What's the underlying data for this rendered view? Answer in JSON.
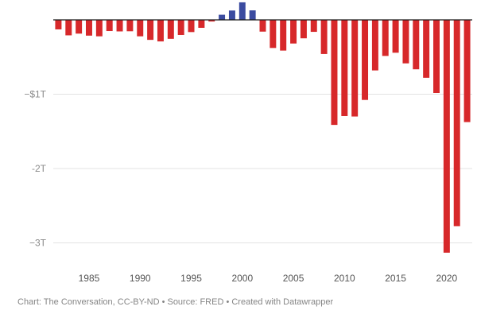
{
  "chart_data": {
    "type": "bar",
    "title": "",
    "xlabel": "",
    "ylabel": "",
    "unit": "Trillions USD",
    "x_tick_labels": [
      "1985",
      "1990",
      "1995",
      "2000",
      "2005",
      "2010",
      "2015",
      "2020"
    ],
    "y_ticks": [
      {
        "value": -1,
        "label": "−$1T"
      },
      {
        "value": -2,
        "label": "-2T"
      },
      {
        "value": -3,
        "label": "−3T"
      }
    ],
    "ylim": [
      -3.3,
      0.0
    ],
    "xlim": [
      1981.5,
      2022.5
    ],
    "categories": [
      1982,
      1983,
      1984,
      1985,
      1986,
      1987,
      1988,
      1989,
      1990,
      1991,
      1992,
      1993,
      1994,
      1995,
      1996,
      1997,
      1998,
      1999,
      2000,
      2001,
      2002,
      2003,
      2004,
      2005,
      2006,
      2007,
      2008,
      2009,
      2010,
      2011,
      2012,
      2013,
      2014,
      2015,
      2016,
      2017,
      2018,
      2019,
      2020,
      2021,
      2022
    ],
    "values": [
      -0.128,
      -0.208,
      -0.185,
      -0.212,
      -0.221,
      -0.15,
      -0.155,
      -0.153,
      -0.221,
      -0.269,
      -0.29,
      -0.255,
      -0.203,
      -0.164,
      -0.107,
      -0.022,
      0.069,
      0.126,
      0.236,
      0.128,
      -0.158,
      -0.378,
      -0.413,
      -0.318,
      -0.248,
      -0.161,
      -0.459,
      -1.413,
      -1.294,
      -1.3,
      -1.077,
      -0.68,
      -0.485,
      -0.442,
      -0.585,
      -0.665,
      -0.779,
      -0.984,
      -3.132,
      -2.775,
      -1.375
    ],
    "colors": {
      "surplus": "#3b4ba0",
      "deficit": "#d7282a"
    }
  },
  "footer": {
    "credit": "Chart: The Conversation, CC-BY-ND • Source: FRED • Created with Datawrapper"
  }
}
